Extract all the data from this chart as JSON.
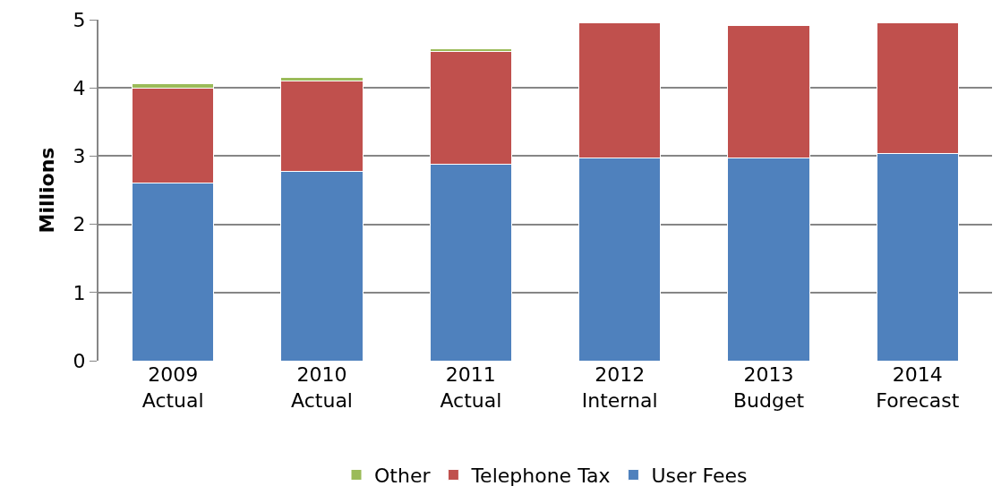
{
  "chart_data": {
    "type": "bar",
    "stacked": true,
    "ylabel": "Millions",
    "categories": [
      "2009\nActual",
      "2010\nActual",
      "2011\nActual",
      "2012\nInternal",
      "2013\nBudget",
      "2014\nForecast"
    ],
    "series": [
      {
        "name": "User Fees",
        "color": "#4f81bd",
        "values": [
          2.6,
          2.77,
          2.88,
          2.97,
          2.97,
          3.04
        ]
      },
      {
        "name": "Telephone Tax",
        "color": "#c0504d",
        "values": [
          1.4,
          1.33,
          1.65,
          1.99,
          1.94,
          1.92
        ]
      },
      {
        "name": "Other",
        "color": "#9bbb59",
        "values": [
          0.06,
          0.05,
          0.05,
          null,
          null,
          null
        ]
      }
    ],
    "ylim": [
      0,
      5
    ],
    "yticks": [
      0,
      1,
      2,
      3,
      4,
      5
    ],
    "grid": "y",
    "legend": "bottom"
  }
}
